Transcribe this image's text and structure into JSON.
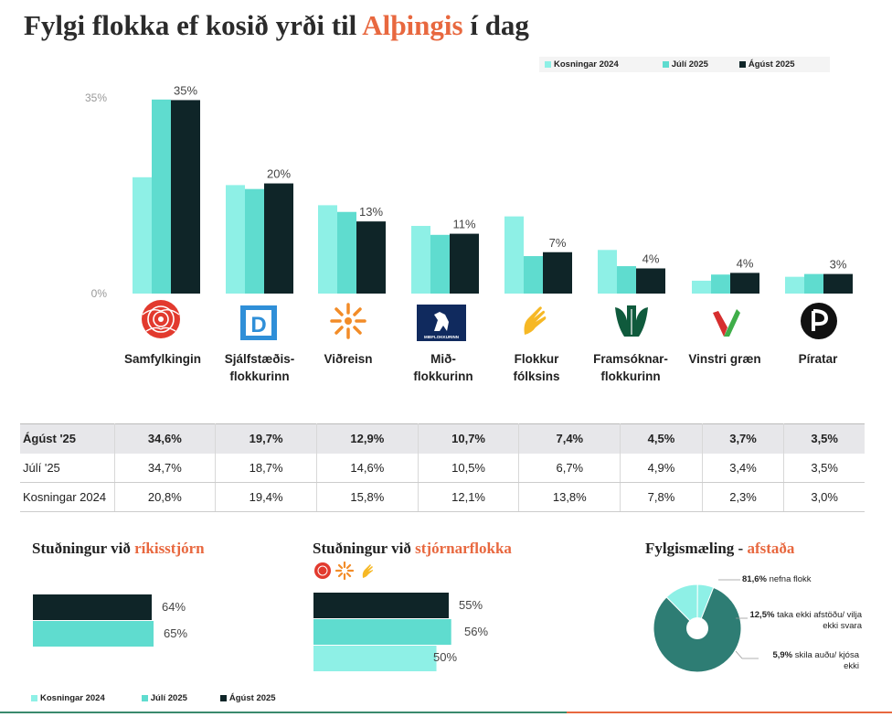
{
  "title": {
    "part1": "Fylgi flokka ef kosið yrði til ",
    "accent": "Alþingis",
    "part2": " í dag"
  },
  "colors": {
    "kosningar": "#8ef0e6",
    "juli": "#5fdccf",
    "agust": "#0f2528",
    "accent": "#e8683f",
    "pie": "#2e7d74",
    "pie_light": "#8ef0e6"
  },
  "legend": [
    {
      "label": "Kosningar 2024",
      "color": "#8ef0e6"
    },
    {
      "label": "Júlí 2025",
      "color": "#5fdccf"
    },
    {
      "label": "Ágúst 2025",
      "color": "#0f2528"
    }
  ],
  "chart_data": [
    {
      "type": "bar",
      "title": "Fylgi flokka ef kosið yrði til Alþingis í dag",
      "categories": [
        "Samfylkingin",
        "Sjálfstæðisflokkurinn",
        "Viðreisn",
        "Miðflokkurinn",
        "Flokkur fólksins",
        "Framsóknarflokkurinn",
        "Vinstri græn",
        "Píratar"
      ],
      "category_labels": [
        [
          "Samfylkingin"
        ],
        [
          "Sjálfstæðis-",
          "flokkurinn"
        ],
        [
          "Viðreisn"
        ],
        [
          "Mið-",
          "flokkurinn"
        ],
        [
          "Flokkur",
          "fólksins"
        ],
        [
          "Framsóknar-",
          "flokkurinn"
        ],
        [
          "Vinstri græn"
        ],
        [
          "Píratar"
        ]
      ],
      "series": [
        {
          "name": "Kosningar 2024",
          "values": [
            20.8,
            19.4,
            15.8,
            12.1,
            13.8,
            7.8,
            2.3,
            3.0
          ]
        },
        {
          "name": "Júlí 2025",
          "values": [
            34.7,
            18.7,
            14.6,
            10.5,
            6.7,
            4.9,
            3.4,
            3.5
          ]
        },
        {
          "name": "Ágúst 2025",
          "values": [
            34.6,
            19.7,
            12.9,
            10.7,
            7.4,
            4.5,
            3.7,
            3.5
          ]
        }
      ],
      "data_labels": [
        "35%",
        "20%",
        "13%",
        "11%",
        "7%",
        "4%",
        "4%",
        "3%"
      ],
      "y_ticks": [
        "0%",
        "35%"
      ],
      "ylim": [
        0,
        35
      ],
      "legend_position": "top-right"
    },
    {
      "type": "bar",
      "orientation": "horizontal",
      "title": "Stuðningur við ríkisstjórn",
      "series": [
        {
          "name": "Ágúst 2025",
          "value": 64,
          "label": "64%"
        },
        {
          "name": "Júlí 2025",
          "value": 65,
          "label": "65%"
        }
      ]
    },
    {
      "type": "bar",
      "orientation": "horizontal",
      "title": "Stuðningur við stjórnarflokka",
      "series": [
        {
          "name": "Ágúst 2025",
          "value": 55,
          "label": "55%"
        },
        {
          "name": "Júlí 2025",
          "value": 56,
          "label": "56%"
        },
        {
          "name": "Kosningar 2024",
          "value": 50,
          "label": "50%"
        }
      ]
    },
    {
      "type": "pie",
      "title": "Fylgismæling - afstaða",
      "slices": [
        {
          "value": 81.6,
          "pct": "81,6%",
          "text": "nefna flokk"
        },
        {
          "value": 12.5,
          "pct": "12,5%",
          "text": "taka ekki afstöðu/ vilja ekki svara"
        },
        {
          "value": 5.9,
          "pct": "5,9%",
          "text": "skila auðu/ kjósa ekki"
        }
      ]
    }
  ],
  "table": {
    "columns": [
      "34,6%",
      "19,7%",
      "12,9%",
      "10,7%",
      "7,4%",
      "4,5%",
      "3,7%",
      "3,5%"
    ],
    "rows": [
      {
        "label": "Ágúst '25",
        "values": [
          "34,6%",
          "19,7%",
          "12,9%",
          "10,7%",
          "7,4%",
          "4,5%",
          "3,7%",
          "3,5%"
        ]
      },
      {
        "label": "Júlí '25",
        "values": [
          "34,7%",
          "18,7%",
          "14,6%",
          "10,5%",
          "6,7%",
          "4,9%",
          "3,4%",
          "3,5%"
        ]
      },
      {
        "label": "Kosningar 2024",
        "values": [
          "20,8%",
          "19,4%",
          "15,8%",
          "12,1%",
          "13,8%",
          "7,8%",
          "2,3%",
          "3,0%"
        ]
      }
    ]
  },
  "sections": {
    "rikisstjorn": {
      "text": "Stuðningur við ",
      "accent": "ríkisstjórn"
    },
    "stjornarflokka": {
      "text": "Stuðningur við ",
      "accent": "stjórnarflokka"
    },
    "fylgismaeling": {
      "text": "Fylgismæling - ",
      "accent": "afstaða"
    }
  },
  "logos": {
    "sjalfstaedis": "D",
    "midflokkurinn": "MIÐFLOKKURINN",
    "icons": [
      "rose-icon",
      "d-letter-icon",
      "sunflower-icon",
      "horse-icon",
      "hand-icon",
      "three-leaves-icon",
      "green-v-icon",
      "pirate-flag-icon"
    ]
  }
}
